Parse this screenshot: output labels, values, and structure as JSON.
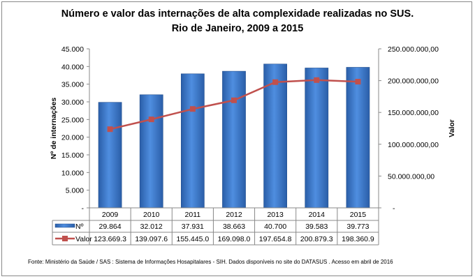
{
  "chart_data": {
    "type": "bar+line",
    "title": "Número e valor das internações de alta complexidade realizadas no SUS.",
    "subtitle": "Rio de Janeiro, 2009 a 2015",
    "categories": [
      "2009",
      "2010",
      "2011",
      "2012",
      "2013",
      "2014",
      "2015"
    ],
    "series": [
      {
        "name": "Nº",
        "type": "bar",
        "axis": "left",
        "values": [
          29864,
          32012,
          37931,
          38663,
          40700,
          39583,
          39773
        ],
        "labels": [
          "29.864",
          "32.012",
          "37.931",
          "38.663",
          "40.700",
          "39.583",
          "39.773"
        ],
        "color": "#3a78c9"
      },
      {
        "name": "Valor",
        "type": "line",
        "axis": "right",
        "values": [
          123669300,
          139097600,
          155445000,
          169098000,
          197654800,
          200879300,
          198360900
        ],
        "labels": [
          "123.669.3",
          "139.097.6",
          "155.445.0",
          "169.098.0",
          "197.654.8",
          "200.879.3",
          "198.360.9"
        ],
        "color": "#c0504d"
      }
    ],
    "ylabel": "Nº de internações",
    "y2label": "Valor",
    "ylim": [
      0,
      45000
    ],
    "y2lim": [
      0,
      250000000
    ],
    "yticks": [
      "-",
      "5.000",
      "10.000",
      "15.000",
      "20.000",
      "25.000",
      "30.000",
      "35.000",
      "40.000",
      "45.000"
    ],
    "y2ticks": [
      "-",
      "50.000.000,00",
      "100.000.000,00",
      "150.000.000,00",
      "200.000.000,00",
      "250.000.000,00"
    ],
    "grid": false,
    "legend": "data-table"
  },
  "source": "Fonte:  Ministério da Saúde / SAS : Sistema de Informações Hosapitalares - SIH. Dados disponíveis no site do DATASUS . Acesso em abril de 2016"
}
